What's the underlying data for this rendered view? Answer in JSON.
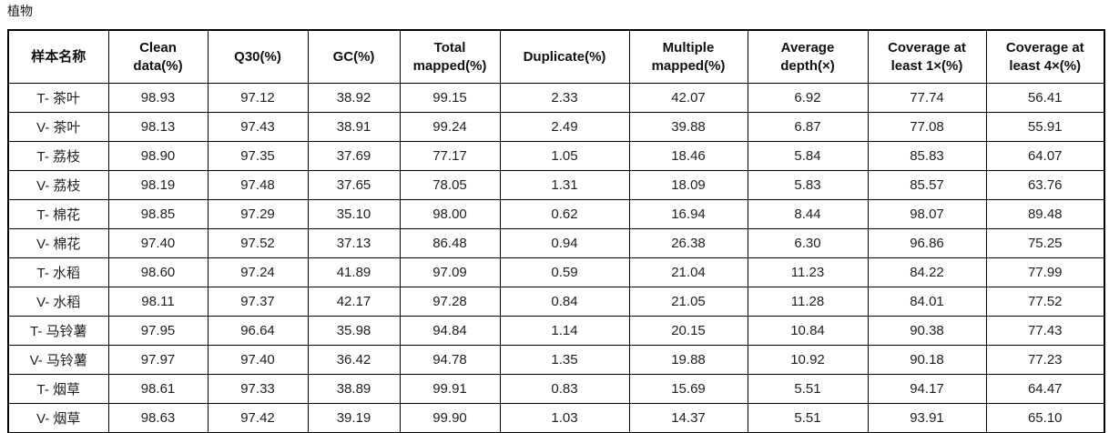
{
  "page": {
    "title": "植物"
  },
  "table": {
    "columns": [
      "样本名称",
      "Clean data(%)",
      "Q30(%)",
      "GC(%)",
      "Total mapped(%)",
      "Duplicate(%)",
      "Multiple mapped(%)",
      "Average depth(×)",
      "Coverage at least 1×(%)",
      "Coverage at least 4×(%)"
    ],
    "rows": [
      [
        "T- 茶叶",
        "98.93",
        "97.12",
        "38.92",
        "99.15",
        "2.33",
        "42.07",
        "6.92",
        "77.74",
        "56.41"
      ],
      [
        "V- 茶叶",
        "98.13",
        "97.43",
        "38.91",
        "99.24",
        "2.49",
        "39.88",
        "6.87",
        "77.08",
        "55.91"
      ],
      [
        "T- 荔枝",
        "98.90",
        "97.35",
        "37.69",
        "77.17",
        "1.05",
        "18.46",
        "5.84",
        "85.83",
        "64.07"
      ],
      [
        "V- 荔枝",
        "98.19",
        "97.48",
        "37.65",
        "78.05",
        "1.31",
        "18.09",
        "5.83",
        "85.57",
        "63.76"
      ],
      [
        "T- 棉花",
        "98.85",
        "97.29",
        "35.10",
        "98.00",
        "0.62",
        "16.94",
        "8.44",
        "98.07",
        "89.48"
      ],
      [
        "V- 棉花",
        "97.40",
        "97.52",
        "37.13",
        "86.48",
        "0.94",
        "26.38",
        "6.30",
        "96.86",
        "75.25"
      ],
      [
        "T- 水稻",
        "98.60",
        "97.24",
        "41.89",
        "97.09",
        "0.59",
        "21.04",
        "11.23",
        "84.22",
        "77.99"
      ],
      [
        "V- 水稻",
        "98.11",
        "97.37",
        "42.17",
        "97.28",
        "0.84",
        "21.05",
        "11.28",
        "84.01",
        "77.52"
      ],
      [
        "T- 马铃薯",
        "97.95",
        "96.64",
        "35.98",
        "94.84",
        "1.14",
        "20.15",
        "10.84",
        "90.38",
        "77.43"
      ],
      [
        "V- 马铃薯",
        "97.97",
        "97.40",
        "36.42",
        "94.78",
        "1.35",
        "19.88",
        "10.92",
        "90.18",
        "77.23"
      ],
      [
        "T- 烟草",
        "98.61",
        "97.33",
        "38.89",
        "99.91",
        "0.83",
        "15.69",
        "5.51",
        "94.17",
        "64.47"
      ],
      [
        "V- 烟草",
        "98.63",
        "97.42",
        "39.19",
        "99.90",
        "1.03",
        "14.37",
        "5.51",
        "93.91",
        "65.10"
      ]
    ]
  }
}
